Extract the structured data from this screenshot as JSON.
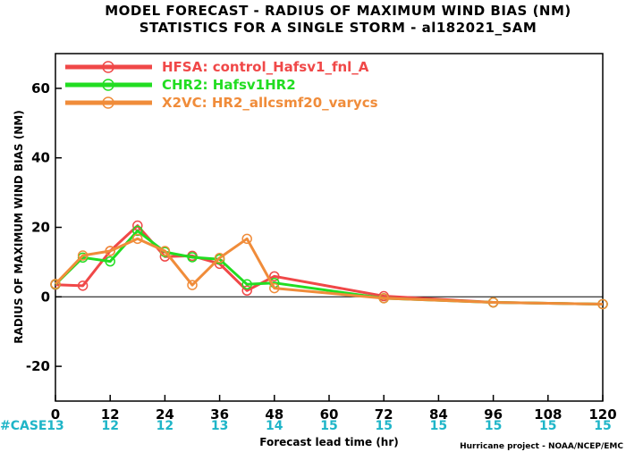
{
  "chart_data": {
    "type": "line",
    "title": "MODEL FORECAST - RADIUS OF MAXIMUM WIND BIAS (NM)",
    "subtitle": "STATISTICS FOR A SINGLE STORM - al182021_SAM",
    "xlabel": "Forecast lead time (hr)",
    "ylabel": "RADIUS OF MAXIMUM WIND BIAS (NM)",
    "xlim": [
      0,
      120
    ],
    "ylim": [
      -30,
      70
    ],
    "x_ticks": [
      "0",
      "12",
      "24",
      "36",
      "48",
      "60",
      "72",
      "84",
      "96",
      "108",
      "120"
    ],
    "y_ticks": [
      "-20",
      "0",
      "20",
      "40",
      "60"
    ],
    "case_label": "#CASE",
    "case_counts": [
      {
        "hour": "0",
        "count": "13"
      },
      {
        "hour": "12",
        "count": "12"
      },
      {
        "hour": "24",
        "count": "12"
      },
      {
        "hour": "36",
        "count": "13"
      },
      {
        "hour": "48",
        "count": "14"
      },
      {
        "hour": "60",
        "count": "15"
      },
      {
        "hour": "72",
        "count": "15"
      },
      {
        "hour": "84",
        "count": "15"
      },
      {
        "hour": "96",
        "count": "15"
      },
      {
        "hour": "108",
        "count": "15"
      },
      {
        "hour": "120",
        "count": "15"
      }
    ],
    "reference_line": 0,
    "legend_position": "top-left",
    "series": [
      {
        "name": "HFSA: control_Hafsv1_fnl_A",
        "color": "#f04848",
        "points": [
          [
            0,
            3.5
          ],
          [
            6,
            3.2
          ],
          [
            12,
            13.2
          ],
          [
            18,
            20.5
          ],
          [
            24,
            11.6
          ],
          [
            30,
            11.8
          ],
          [
            36,
            9.5
          ],
          [
            42,
            1.8
          ],
          [
            48,
            5.9
          ],
          [
            72,
            0.2
          ],
          [
            96,
            -1.6
          ],
          [
            120,
            -2.1
          ]
        ]
      },
      {
        "name": "CHR2: Hafsv1HR2",
        "color": "#22dd22",
        "points": [
          [
            0,
            3.6
          ],
          [
            6,
            11.3
          ],
          [
            12,
            10.2
          ],
          [
            18,
            19.0
          ],
          [
            24,
            12.9
          ],
          [
            30,
            11.4
          ],
          [
            36,
            10.8
          ],
          [
            42,
            3.6
          ],
          [
            48,
            4.0
          ],
          [
            72,
            -0.4
          ],
          [
            96,
            -1.6
          ],
          [
            120,
            -2.1
          ]
        ]
      },
      {
        "name": "X2VC: HR2_allcsmf20_varycs",
        "color": "#f08c3a",
        "points": [
          [
            0,
            3.7
          ],
          [
            6,
            11.9
          ],
          [
            12,
            13.2
          ],
          [
            18,
            16.7
          ],
          [
            24,
            13.2
          ],
          [
            30,
            3.4
          ],
          [
            36,
            11.2
          ],
          [
            42,
            16.7
          ],
          [
            48,
            2.5
          ],
          [
            72,
            -0.4
          ],
          [
            96,
            -1.6
          ],
          [
            120,
            -2.1
          ]
        ]
      }
    ]
  },
  "credit": "Hurricane project - NOAA/NCEP/EMC"
}
